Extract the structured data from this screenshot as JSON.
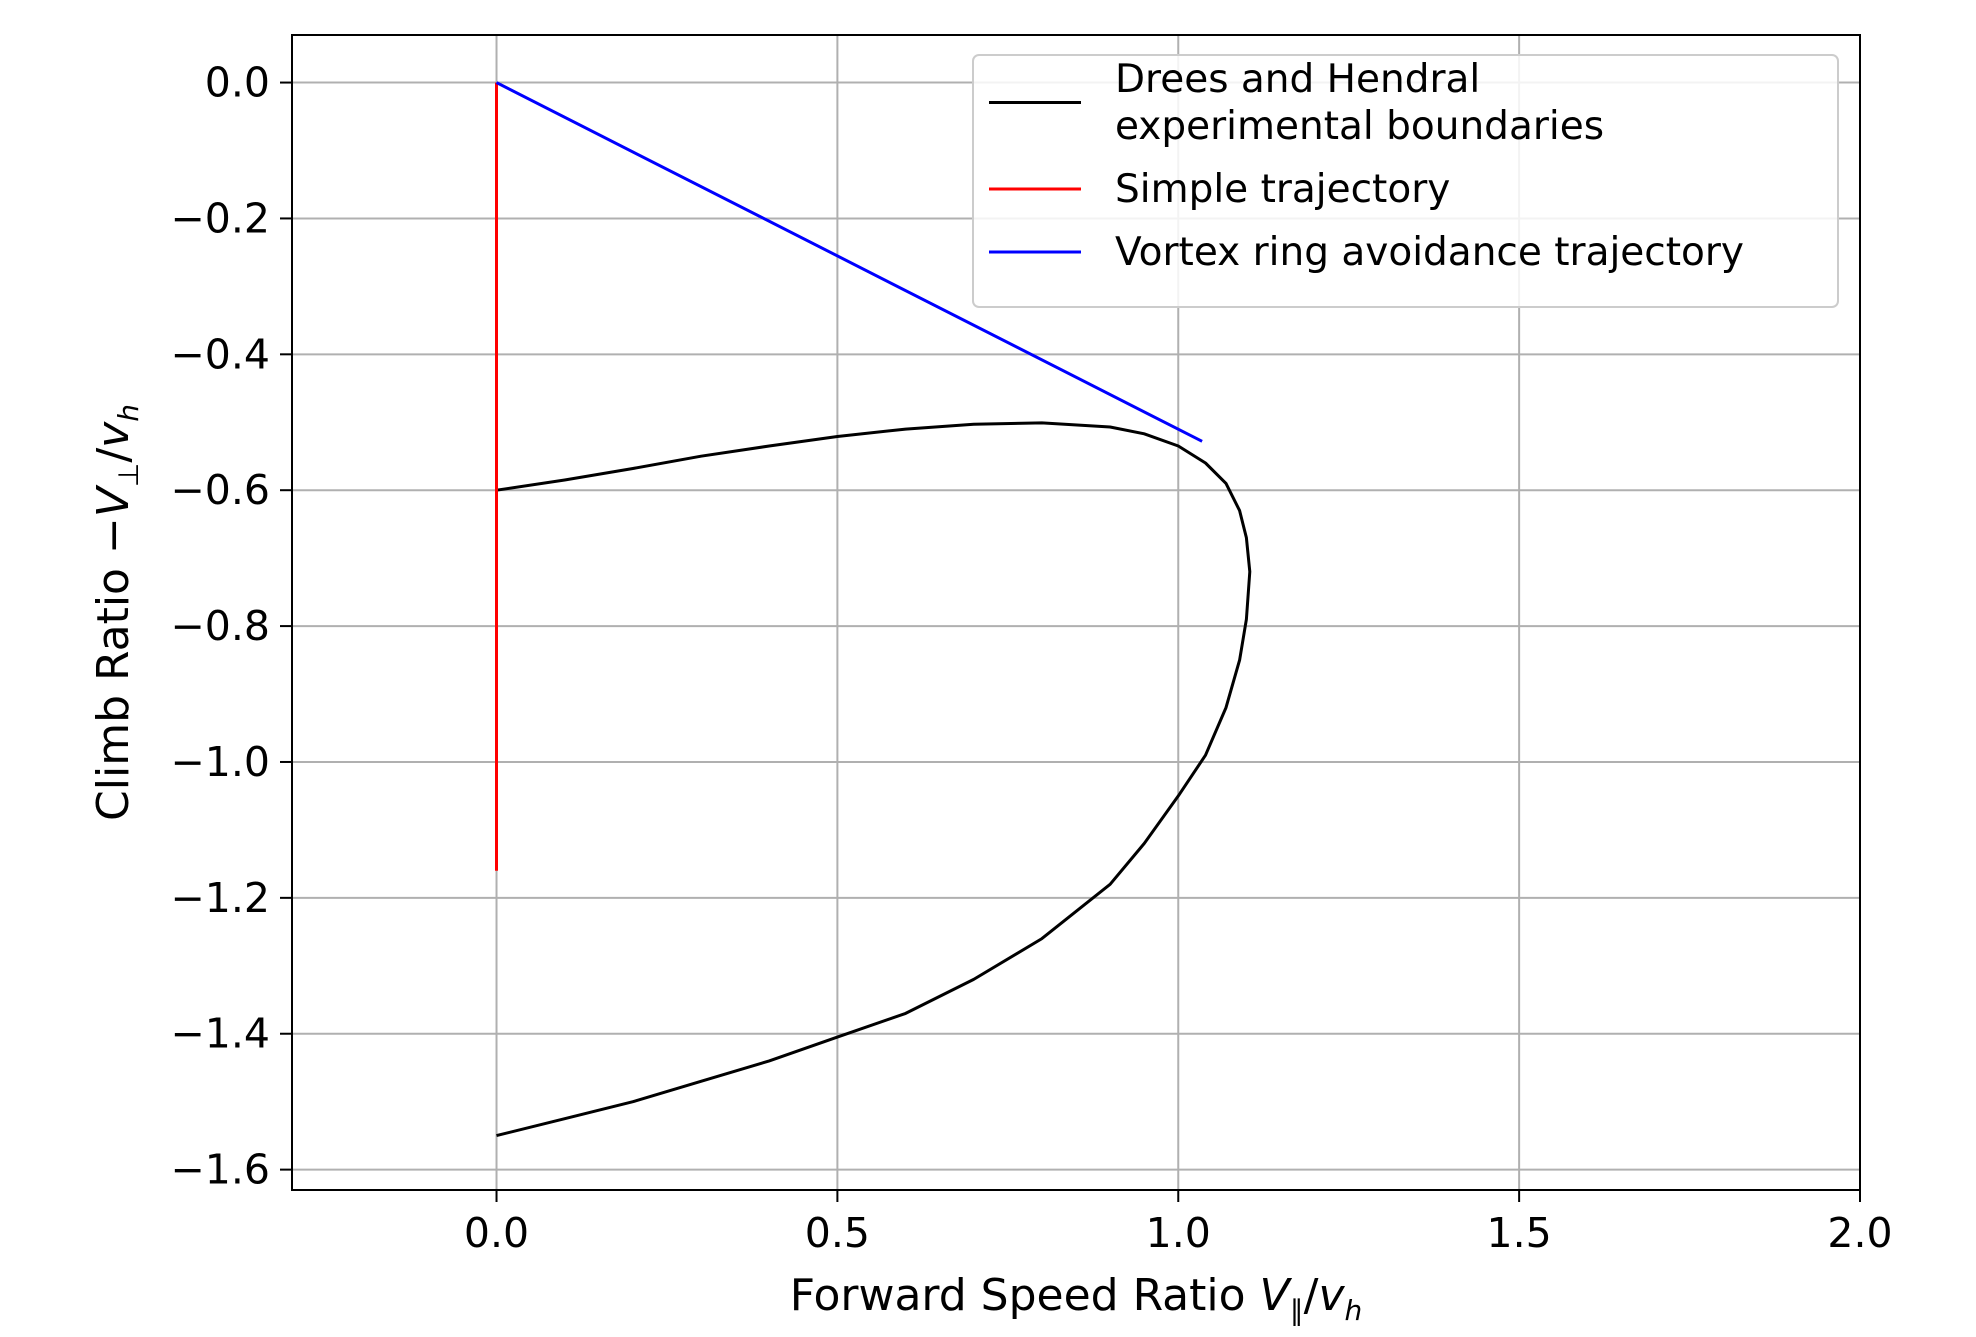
{
  "chart_data": {
    "type": "line",
    "title": "",
    "xlabel": "Forward Speed Ratio V∥/vh",
    "xlabel_text": "Forward Speed Ratio ",
    "xlabel_var": "V",
    "xlabel_sub": "∥",
    "xlabel_slash": "/",
    "xlabel_var2": "v",
    "xlabel_sub2": "h",
    "ylabel": "Climb Ratio −V⊥/vh",
    "ylabel_text": "Climb Ratio −",
    "ylabel_var": "V",
    "ylabel_sub": "⊥",
    "ylabel_slash": "/",
    "ylabel_var2": "v",
    "ylabel_sub2": "h",
    "xlim": [
      -0.3,
      2.0
    ],
    "ylim": [
      -1.63,
      0.07
    ],
    "xticks": [
      0.0,
      0.5,
      1.0,
      1.5,
      2.0
    ],
    "xtick_labels": [
      "0.0",
      "0.5",
      "1.0",
      "1.5",
      "2.0"
    ],
    "yticks": [
      0.0,
      -0.2,
      -0.4,
      -0.6,
      -0.8,
      -1.0,
      -1.2,
      -1.4,
      -1.6
    ],
    "ytick_labels": [
      "0.0",
      "−0.2",
      "−0.4",
      "−0.6",
      "−0.8",
      "−1.0",
      "−1.2",
      "−1.4",
      "−1.6"
    ],
    "grid": true,
    "legend_position": "top-right",
    "colors": {
      "boundary": "#000000",
      "simple": "#ff0000",
      "avoidance": "#0000ff",
      "grid": "#b0b0b0"
    },
    "series": [
      {
        "name": "Drees and Hendral experimental boundaries",
        "legend_lines": [
          "Drees and Hendral",
          "experimental boundaries"
        ],
        "color_key": "boundary",
        "x": [
          0.0,
          0.1,
          0.2,
          0.3,
          0.4,
          0.5,
          0.6,
          0.7,
          0.8,
          0.9,
          0.95,
          1.0,
          1.04,
          1.07,
          1.09,
          1.1,
          1.105,
          1.1,
          1.09,
          1.07,
          1.04,
          1.0,
          0.95,
          0.9,
          0.8,
          0.7,
          0.6,
          0.5,
          0.4,
          0.3,
          0.2,
          0.1,
          0.0
        ],
        "y": [
          -0.6,
          -0.585,
          -0.568,
          -0.55,
          -0.535,
          -0.521,
          -0.51,
          -0.503,
          -0.501,
          -0.507,
          -0.517,
          -0.535,
          -0.56,
          -0.59,
          -0.63,
          -0.67,
          -0.72,
          -0.79,
          -0.85,
          -0.92,
          -0.99,
          -1.05,
          -1.12,
          -1.18,
          -1.26,
          -1.32,
          -1.37,
          -1.405,
          -1.44,
          -1.47,
          -1.5,
          -1.525,
          -1.55
        ]
      },
      {
        "name": "Simple trajectory",
        "legend_lines": [
          "Simple trajectory"
        ],
        "color_key": "simple",
        "x": [
          0.0,
          0.0
        ],
        "y": [
          0.0,
          -1.16
        ]
      },
      {
        "name": "Vortex ring avoidance trajectory",
        "legend_lines": [
          "Vortex ring avoidance trajectory"
        ],
        "color_key": "avoidance",
        "x": [
          0.0,
          1.035
        ],
        "y": [
          0.0,
          -0.528
        ]
      }
    ]
  }
}
